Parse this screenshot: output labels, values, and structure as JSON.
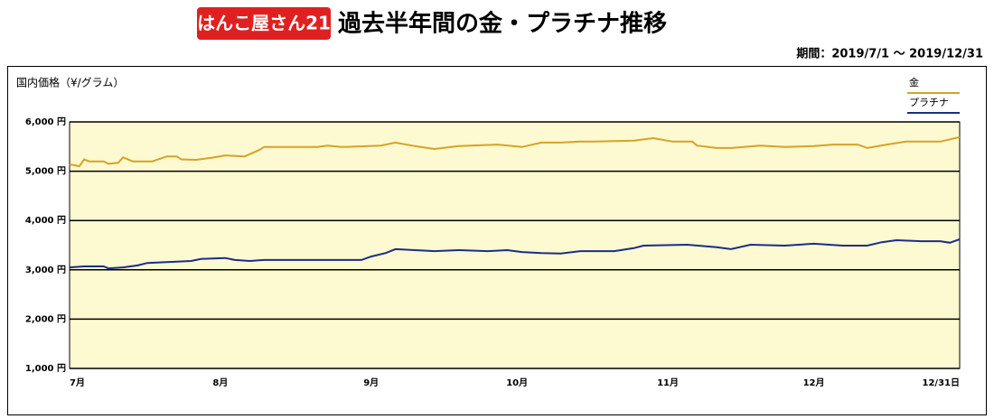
{
  "header": {
    "logo": "はんこ屋さん21",
    "title": "過去半年間の金・プラチナ推移",
    "period": "期間：2019/7/1 〜 2019/12/31"
  },
  "chart_data": {
    "type": "line",
    "ylabel": "国内価格（¥/グラム）",
    "xlim": [
      0,
      183
    ],
    "xticks": [
      {
        "value": 0,
        "label": "7月"
      },
      {
        "value": 31,
        "label": "8月"
      },
      {
        "value": 62,
        "label": "9月"
      },
      {
        "value": 92,
        "label": "10月"
      },
      {
        "value": 123,
        "label": "11月"
      },
      {
        "value": 153,
        "label": "12月"
      },
      {
        "value": 183,
        "label": "12/31日"
      }
    ],
    "ylim": [
      1000,
      6000
    ],
    "yticks": [
      {
        "value": 1000,
        "label": "1,000 円"
      },
      {
        "value": 2000,
        "label": "2,000 円"
      },
      {
        "value": 3000,
        "label": "3,000 円"
      },
      {
        "value": 4000,
        "label": "4,000 円"
      },
      {
        "value": 5000,
        "label": "5,000 円"
      },
      {
        "value": 6000,
        "label": "6,000 円"
      }
    ],
    "grid": true,
    "legend": "upper right",
    "background": "#fdf9d0",
    "series": [
      {
        "name": "金",
        "color": "#d5a327",
        "x": [
          0,
          2,
          3,
          4,
          7,
          8,
          10,
          11,
          13,
          17,
          20,
          22,
          23,
          26,
          29,
          32,
          36,
          39,
          40,
          51,
          53,
          56,
          64,
          67,
          71,
          75,
          80,
          88,
          93,
          97,
          101,
          105,
          108,
          116,
          120,
          124,
          128,
          129,
          133,
          136,
          142,
          147,
          153,
          157,
          162,
          164,
          168,
          172,
          179,
          183
        ],
        "values": [
          5140,
          5100,
          5240,
          5200,
          5200,
          5150,
          5170,
          5280,
          5200,
          5200,
          5300,
          5300,
          5240,
          5230,
          5270,
          5320,
          5300,
          5430,
          5490,
          5490,
          5520,
          5490,
          5520,
          5580,
          5510,
          5450,
          5510,
          5540,
          5490,
          5580,
          5580,
          5600,
          5600,
          5620,
          5670,
          5600,
          5600,
          5520,
          5470,
          5470,
          5520,
          5490,
          5510,
          5540,
          5540,
          5470,
          5540,
          5600,
          5600,
          5690
        ]
      },
      {
        "name": "プラチナ",
        "color": "#1b2d87",
        "x": [
          0,
          3,
          7,
          8,
          11,
          14,
          16,
          25,
          27,
          32,
          34,
          37,
          40,
          51,
          60,
          62,
          65,
          67,
          71,
          75,
          80,
          86,
          90,
          93,
          97,
          101,
          105,
          112,
          116,
          118,
          127,
          133,
          136,
          140,
          147,
          153,
          159,
          164,
          167,
          170,
          175,
          179,
          181,
          183
        ],
        "values": [
          3050,
          3070,
          3070,
          3030,
          3050,
          3090,
          3140,
          3180,
          3220,
          3240,
          3200,
          3180,
          3200,
          3200,
          3200,
          3270,
          3340,
          3420,
          3400,
          3380,
          3400,
          3380,
          3400,
          3360,
          3340,
          3330,
          3380,
          3380,
          3440,
          3490,
          3510,
          3460,
          3420,
          3510,
          3490,
          3530,
          3490,
          3490,
          3560,
          3600,
          3580,
          3580,
          3550,
          3620
        ]
      }
    ]
  }
}
